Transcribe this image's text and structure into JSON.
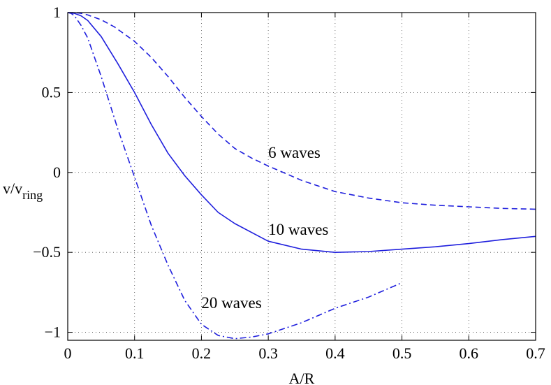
{
  "chart_data": {
    "type": "line",
    "title": "",
    "xlabel": "A/R",
    "ylabel": {
      "main": "v/v",
      "subscript": "ring"
    },
    "xlim": [
      0,
      0.7
    ],
    "ylim": [
      -1.05,
      1
    ],
    "grid": true,
    "xticks": [
      0,
      0.1,
      0.2,
      0.3,
      0.4,
      0.5,
      0.6,
      0.7
    ],
    "xtick_labels": [
      "0",
      "0.1",
      "0.2",
      "0.3",
      "0.4",
      "0.5",
      "0.6",
      "0.7"
    ],
    "yticks": [
      1,
      0.5,
      0,
      -0.5,
      -1
    ],
    "ytick_labels": [
      "1",
      "0.5",
      "0",
      "−0.5",
      "−1"
    ],
    "line_color": "#1f1fdd",
    "series": [
      {
        "name": "6 waves",
        "style": "dashed",
        "x": [
          0,
          0.01,
          0.02,
          0.03,
          0.05,
          0.07,
          0.1,
          0.125,
          0.15,
          0.175,
          0.2,
          0.225,
          0.25,
          0.275,
          0.3,
          0.35,
          0.4,
          0.45,
          0.5,
          0.55,
          0.6,
          0.65,
          0.7
        ],
        "y": [
          1,
          1,
          0.995,
          0.985,
          0.955,
          0.91,
          0.82,
          0.72,
          0.6,
          0.47,
          0.35,
          0.24,
          0.15,
          0.09,
          0.04,
          -0.05,
          -0.12,
          -0.16,
          -0.19,
          -0.205,
          -0.215,
          -0.225,
          -0.23
        ]
      },
      {
        "name": "10 waves",
        "style": "solid",
        "x": [
          0,
          0.01,
          0.02,
          0.03,
          0.05,
          0.075,
          0.1,
          0.125,
          0.15,
          0.175,
          0.2,
          0.225,
          0.25,
          0.3,
          0.35,
          0.4,
          0.45,
          0.5,
          0.55,
          0.6,
          0.65,
          0.7
        ],
        "y": [
          1,
          0.995,
          0.98,
          0.95,
          0.85,
          0.68,
          0.5,
          0.3,
          0.12,
          -0.02,
          -0.14,
          -0.25,
          -0.32,
          -0.43,
          -0.48,
          -0.5,
          -0.495,
          -0.48,
          -0.465,
          -0.445,
          -0.42,
          -0.4
        ]
      },
      {
        "name": "20 waves",
        "style": "dashdot",
        "x": [
          0,
          0.005,
          0.01,
          0.02,
          0.03,
          0.05,
          0.075,
          0.1,
          0.125,
          0.15,
          0.175,
          0.2,
          0.225,
          0.25,
          0.275,
          0.3,
          0.35,
          0.4,
          0.45,
          0.5
        ],
        "y": [
          1,
          0.995,
          0.98,
          0.92,
          0.84,
          0.6,
          0.27,
          -0.03,
          -0.33,
          -0.58,
          -0.8,
          -0.95,
          -1.02,
          -1.04,
          -1.03,
          -1.01,
          -0.94,
          -0.85,
          -0.78,
          -0.69
        ]
      }
    ],
    "annotations": [
      {
        "text": "6 waves",
        "x": 0.3,
        "y": 0.09
      },
      {
        "text": "10 waves",
        "x": 0.3,
        "y": -0.39
      },
      {
        "text": "20 waves",
        "x": 0.2,
        "y": -0.85
      }
    ]
  }
}
